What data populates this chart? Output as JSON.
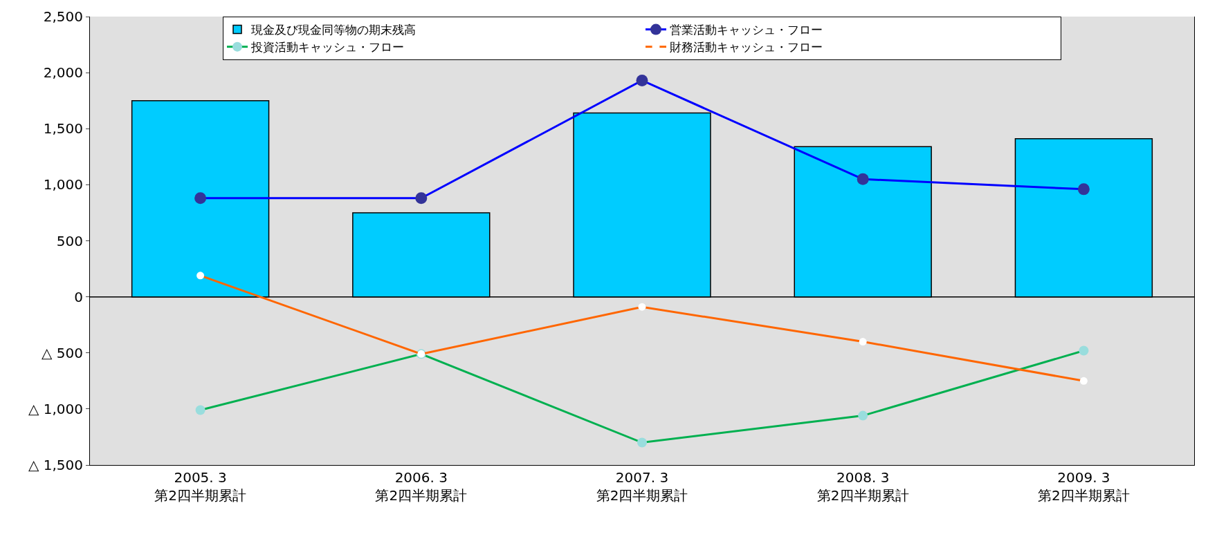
{
  "chart_data": {
    "type": "bar",
    "categories": [
      "2005. 3\n第2四半期累計",
      "2006. 3\n第2四半期累計",
      "2007. 3\n第2四半期累計",
      "2008. 3\n第2四半期累計",
      "2009. 3\n第2四半期累計"
    ],
    "series": [
      {
        "name": "現金及び現金同等物の期末残高",
        "color": "#00ccff",
        "values": [
          1750,
          750,
          1640,
          1340,
          1410
        ]
      },
      {
        "name": "営業活動キャッシュ・フロー",
        "type": "line",
        "color": "#0000ff",
        "values": [
          880,
          880,
          1930,
          1050,
          960
        ]
      },
      {
        "name": "投資活動キャッシュ・フロー",
        "type": "line",
        "color": "#00b050",
        "values": [
          -1010,
          -510,
          -1300,
          -1060,
          -480
        ]
      },
      {
        "name": "財務活動キャッシュ・フロー",
        "type": "line",
        "color": "#ff6600",
        "values": [
          190,
          -510,
          -90,
          -400,
          -750
        ]
      }
    ],
    "ylim": [
      -1500,
      2500
    ],
    "yticks": [
      {
        "value": -1500,
        "label": "△ 1,500"
      },
      {
        "value": -1000,
        "label": "△ 1,000"
      },
      {
        "value": -500,
        "label": "△ 500"
      },
      0,
      {
        "value": 500,
        "label": "500"
      },
      {
        "value": 1000,
        "label": "1,000"
      },
      {
        "value": 1500,
        "label": "1,500"
      },
      {
        "value": 2000,
        "label": "2,000"
      },
      {
        "value": 2500,
        "label": "2,500"
      }
    ],
    "ref_lines": [
      {
        "axis": "y",
        "value": 0,
        "color": "#000000"
      }
    ],
    "marker": "circle",
    "legend": "top",
    "grid": false
  }
}
